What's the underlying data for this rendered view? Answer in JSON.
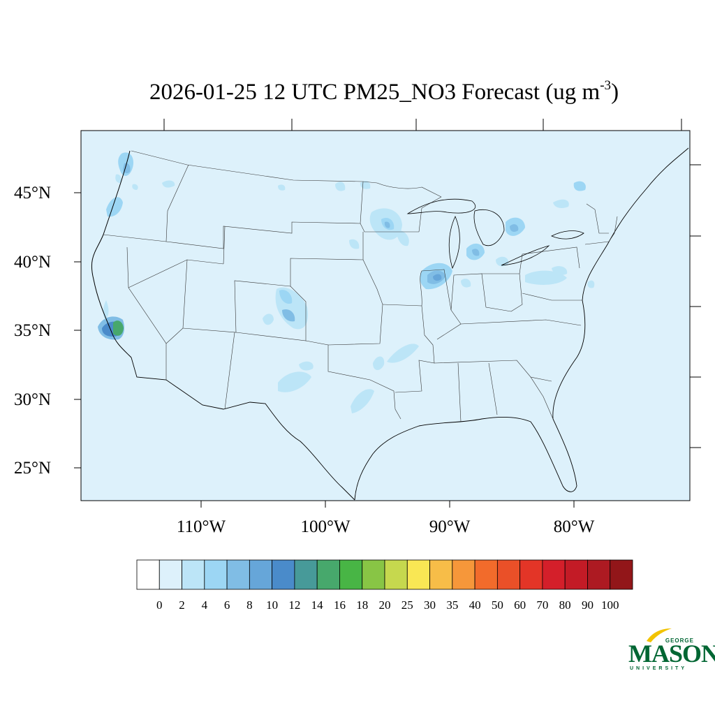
{
  "title": {
    "text": "2026-01-25 12 UTC PM25_NO3 Forecast (ug m",
    "superscript": "-3",
    "suffix": ")"
  },
  "map": {
    "background_color": "#ddf1fb",
    "lat_labels": [
      "45°N",
      "40°N",
      "35°N",
      "30°N",
      "25°N"
    ],
    "lon_labels": [
      "110°W",
      "100°W",
      "90°W",
      "80°W"
    ],
    "hotspots": [
      {
        "name": "southern-california",
        "level": 16
      },
      {
        "name": "puget-sound",
        "level": 8
      },
      {
        "name": "willamette-valley",
        "level": 6
      },
      {
        "name": "colorado-front-range",
        "level": 8
      },
      {
        "name": "southern-minnesota",
        "level": 8
      },
      {
        "name": "illinois",
        "level": 10
      },
      {
        "name": "michigan",
        "level": 6
      },
      {
        "name": "east-texas",
        "level": 4
      }
    ]
  },
  "colorbar": {
    "labels": [
      "0",
      "2",
      "4",
      "6",
      "8",
      "10",
      "12",
      "14",
      "16",
      "18",
      "20",
      "25",
      "30",
      "35",
      "40",
      "50",
      "60",
      "70",
      "80",
      "90",
      "100"
    ],
    "colors": [
      "#ffffff",
      "#ddf1fb",
      "#bce5f7",
      "#9cd6f4",
      "#80bde5",
      "#66a6d9",
      "#4a8bca",
      "#479a99",
      "#47a86c",
      "#48b545",
      "#88c545",
      "#c6d84e",
      "#f9e754",
      "#f7bd48",
      "#f6973a",
      "#f26b2b",
      "#ea5028",
      "#e33527",
      "#d41f2a",
      "#c31b26",
      "#ad1a22",
      "#921619"
    ]
  },
  "logo": {
    "line1": "GEORGE",
    "line2": "MASON",
    "line3": "UNIVERSITY",
    "color": "#006633",
    "accent": "#f2c300"
  }
}
